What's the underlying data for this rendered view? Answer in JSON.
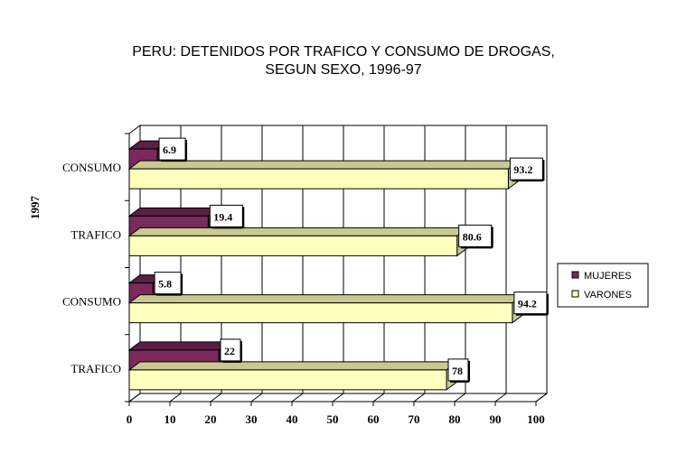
{
  "chart_data": {
    "type": "bar",
    "orientation": "horizontal",
    "title": "PERU: DETENIDOS POR TRAFICO Y CONSUMO DE DROGAS,",
    "subtitle": "SEGUN SEXO, 1996-97",
    "year_label": "1997",
    "categories": [
      "TRAFICO",
      "CONSUMO",
      "TRAFICO",
      "CONSUMO"
    ],
    "series": [
      {
        "name": "MUJERES",
        "values": [
          22,
          5.8,
          19.4,
          6.9
        ],
        "labels": [
          "22",
          "5.8",
          "19.4",
          "6.9"
        ],
        "color": "#7b2a5c"
      },
      {
        "name": "VARONES",
        "values": [
          78,
          94.2,
          80.6,
          93.2
        ],
        "labels": [
          "78",
          "94.2",
          "80.6",
          "93.2"
        ],
        "color": "#ffffc0"
      }
    ],
    "xlim": [
      0,
      100
    ],
    "xticks": [
      "0",
      "10",
      "20",
      "30",
      "40",
      "50",
      "60",
      "70",
      "80",
      "90",
      "100"
    ],
    "grid": true,
    "legend_position": "right"
  }
}
